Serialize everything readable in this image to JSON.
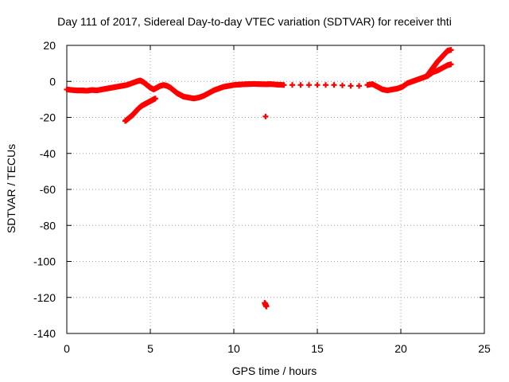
{
  "chart_data": {
    "type": "scatter",
    "title": "Day 111 of 2017, Sidereal Day-to-day VTEC variation (SDTVAR) for receiver thti",
    "xlabel": "GPS time / hours",
    "ylabel": "SDTVAR / TECUs",
    "xlim": [
      0,
      25
    ],
    "ylim": [
      -140,
      20
    ],
    "xticks": [
      0,
      5,
      10,
      15,
      20,
      25
    ],
    "yticks": [
      20,
      0,
      -20,
      -40,
      -60,
      -80,
      -100,
      -120,
      -140
    ],
    "grid": true,
    "series": [
      {
        "name": "SDTVAR",
        "color": "#ff0000",
        "marker": "plus",
        "points": [
          [
            0.0,
            -4.5
          ],
          [
            0.3,
            -4.8
          ],
          [
            0.6,
            -5
          ],
          [
            0.9,
            -5
          ],
          [
            1.2,
            -5.2
          ],
          [
            1.5,
            -4.8
          ],
          [
            1.8,
            -5
          ],
          [
            2.1,
            -4.5
          ],
          [
            2.4,
            -4
          ],
          [
            2.7,
            -3.5
          ],
          [
            3.0,
            -3
          ],
          [
            3.3,
            -2.5
          ],
          [
            3.6,
            -2
          ],
          [
            3.9,
            -1
          ],
          [
            4.2,
            0
          ],
          [
            4.4,
            0.5
          ],
          [
            4.6,
            -0.5
          ],
          [
            4.8,
            -2
          ],
          [
            5.0,
            -3.5
          ],
          [
            5.2,
            -4.5
          ],
          [
            5.4,
            -3.5
          ],
          [
            5.6,
            -2.5
          ],
          [
            5.8,
            -2
          ],
          [
            6.0,
            -2.5
          ],
          [
            6.2,
            -3.5
          ],
          [
            6.4,
            -5
          ],
          [
            6.6,
            -6.5
          ],
          [
            6.8,
            -7.5
          ],
          [
            7.0,
            -8.5
          ],
          [
            7.3,
            -9
          ],
          [
            7.6,
            -9.5
          ],
          [
            7.9,
            -9
          ],
          [
            8.2,
            -8
          ],
          [
            8.5,
            -6.5
          ],
          [
            8.8,
            -5
          ],
          [
            9.1,
            -4
          ],
          [
            9.4,
            -3
          ],
          [
            9.7,
            -2.5
          ],
          [
            10.0,
            -2
          ],
          [
            10.3,
            -1.8
          ],
          [
            10.6,
            -1.6
          ],
          [
            10.9,
            -1.5
          ],
          [
            11.2,
            -1.4
          ],
          [
            11.5,
            -1.5
          ],
          [
            11.9,
            -1.6
          ],
          [
            12.2,
            -1.5
          ],
          [
            12.6,
            -1.8
          ],
          [
            13.0,
            -2
          ],
          [
            13.5,
            -2
          ],
          [
            14.0,
            -2
          ],
          [
            14.5,
            -2
          ],
          [
            15.0,
            -2
          ],
          [
            15.5,
            -2
          ],
          [
            16.0,
            -2
          ],
          [
            16.5,
            -2.2
          ],
          [
            17.0,
            -2.5
          ],
          [
            17.5,
            -2.5
          ],
          [
            18.0,
            -2
          ],
          [
            18.3,
            -1.5
          ],
          [
            18.6,
            -3
          ],
          [
            18.9,
            -4.5
          ],
          [
            19.2,
            -5
          ],
          [
            19.5,
            -4.5
          ],
          [
            19.8,
            -4
          ],
          [
            20.1,
            -3
          ],
          [
            20.4,
            -1
          ],
          [
            20.7,
            0
          ],
          [
            21.0,
            1
          ],
          [
            21.3,
            2
          ],
          [
            21.6,
            3
          ],
          [
            21.9,
            5
          ],
          [
            22.2,
            6
          ],
          [
            22.5,
            7.5
          ],
          [
            22.8,
            9
          ],
          [
            23.0,
            9.5
          ],
          [
            21.6,
            3.5
          ],
          [
            21.8,
            6
          ],
          [
            22.0,
            8.5
          ],
          [
            22.2,
            11
          ],
          [
            22.4,
            13
          ],
          [
            22.6,
            15
          ],
          [
            22.8,
            17
          ],
          [
            23.0,
            17.5
          ],
          [
            3.5,
            -22
          ],
          [
            3.7,
            -20.5
          ],
          [
            3.9,
            -19
          ],
          [
            4.1,
            -17
          ],
          [
            4.3,
            -15
          ],
          [
            4.5,
            -13.5
          ],
          [
            4.7,
            -12.5
          ],
          [
            4.9,
            -11.5
          ],
          [
            5.1,
            -10.5
          ],
          [
            5.3,
            -9.5
          ],
          [
            11.9,
            -19.5
          ],
          [
            11.85,
            -123
          ],
          [
            11.9,
            -124
          ],
          [
            11.95,
            -125
          ]
        ]
      }
    ]
  }
}
